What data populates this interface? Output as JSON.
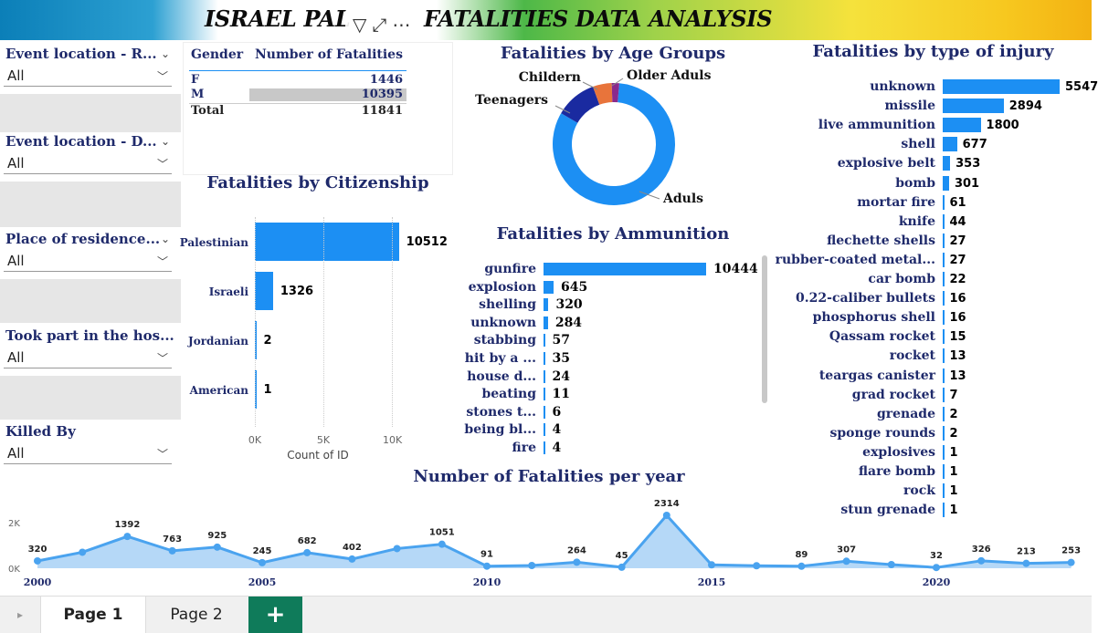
{
  "banner": {
    "title": "ISRAEL PAL          FATALITIES DATA ANALYSIS",
    "filter_icon": "filter-icon",
    "focus_icon": "focus-mode-icon",
    "more_icon": "more-options-icon"
  },
  "slicers": [
    {
      "title": "Event location - R...",
      "value": "All"
    },
    {
      "title": "Event location - D...",
      "value": "All"
    },
    {
      "title": "Place of residence...",
      "value": "All"
    },
    {
      "title": "Took part in the hos...",
      "value": "All"
    },
    {
      "title": "Killed By",
      "value": "All"
    }
  ],
  "gender_table": {
    "headers": [
      "Gender",
      "Number of Fatalities"
    ],
    "rows": [
      {
        "gender": "F",
        "count": "1446"
      },
      {
        "gender": "M",
        "count": "10395"
      }
    ],
    "total_label": "Total",
    "total_value": "11841"
  },
  "citizenship": {
    "title": "Fatalities by Citizenship",
    "xlabel": "Count of ID",
    "ticks": [
      "0K",
      "5K",
      "10K"
    ],
    "items": [
      {
        "label": "Palestinian",
        "value": 10512,
        "text": "10512"
      },
      {
        "label": "Israeli",
        "value": 1326,
        "text": "1326"
      },
      {
        "label": "Jordanian",
        "value": 2,
        "text": "2"
      },
      {
        "label": "American",
        "value": 1,
        "text": "1"
      }
    ]
  },
  "age": {
    "title": "Fatalities by Age Groups",
    "slices": [
      {
        "label": "Aduls",
        "value": 0.82,
        "color": "#1c8ff3"
      },
      {
        "label": "Teenagers",
        "value": 0.11,
        "color": "#1a2aa0"
      },
      {
        "label": "Childern",
        "value": 0.05,
        "color": "#e8743b"
      },
      {
        "label": "Older Aduls",
        "value": 0.02,
        "color": "#8a2a8c"
      }
    ]
  },
  "ammunition": {
    "title": "Fatalities by Ammunition",
    "items": [
      {
        "label": "gunfire",
        "value": 10444,
        "text": "10444"
      },
      {
        "label": "explosion",
        "value": 645,
        "text": "645"
      },
      {
        "label": "shelling",
        "value": 320,
        "text": "320"
      },
      {
        "label": "unknown",
        "value": 284,
        "text": "284"
      },
      {
        "label": "stabbing",
        "value": 57,
        "text": "57"
      },
      {
        "label": "hit by a ...",
        "value": 35,
        "text": "35"
      },
      {
        "label": "house d...",
        "value": 24,
        "text": "24"
      },
      {
        "label": "beating",
        "value": 11,
        "text": "11"
      },
      {
        "label": "stones t...",
        "value": 6,
        "text": "6"
      },
      {
        "label": "being bl...",
        "value": 4,
        "text": "4"
      },
      {
        "label": "fire",
        "value": 4,
        "text": "4"
      }
    ]
  },
  "injury": {
    "title": "Fatalities by type of injury",
    "items": [
      {
        "label": "unknown",
        "value": 5547,
        "text": "5547"
      },
      {
        "label": "missile",
        "value": 2894,
        "text": "2894"
      },
      {
        "label": "live ammunition",
        "value": 1800,
        "text": "1800"
      },
      {
        "label": "shell",
        "value": 677,
        "text": "677"
      },
      {
        "label": "explosive belt",
        "value": 353,
        "text": "353"
      },
      {
        "label": "bomb",
        "value": 301,
        "text": "301"
      },
      {
        "label": "mortar fire",
        "value": 61,
        "text": "61"
      },
      {
        "label": "knife",
        "value": 44,
        "text": "44"
      },
      {
        "label": "flechette shells",
        "value": 27,
        "text": "27"
      },
      {
        "label": "rubber-coated metal...",
        "value": 27,
        "text": "27"
      },
      {
        "label": "car bomb",
        "value": 22,
        "text": "22"
      },
      {
        "label": "0.22-caliber bullets",
        "value": 16,
        "text": "16"
      },
      {
        "label": "phosphorus shell",
        "value": 16,
        "text": "16"
      },
      {
        "label": "Qassam rocket",
        "value": 15,
        "text": "15"
      },
      {
        "label": "rocket",
        "value": 13,
        "text": "13"
      },
      {
        "label": "teargas canister",
        "value": 13,
        "text": "13"
      },
      {
        "label": "grad rocket",
        "value": 7,
        "text": "7"
      },
      {
        "label": "grenade",
        "value": 2,
        "text": "2"
      },
      {
        "label": "sponge rounds",
        "value": 2,
        "text": "2"
      },
      {
        "label": "explosives",
        "value": 1,
        "text": "1"
      },
      {
        "label": "flare bomb",
        "value": 1,
        "text": "1"
      },
      {
        "label": "rock",
        "value": 1,
        "text": "1"
      },
      {
        "label": "stun grenade",
        "value": 1,
        "text": "1"
      }
    ]
  },
  "yearly": {
    "title": "Number of Fatalities per year",
    "yticks": [
      "0K",
      "2K"
    ],
    "xticks": [
      "2000",
      "2005",
      "2010",
      "2015",
      "2020"
    ],
    "years": [
      2000,
      2001,
      2002,
      2003,
      2004,
      2005,
      2006,
      2007,
      2008,
      2009,
      2010,
      2011,
      2012,
      2013,
      2014,
      2015,
      2016,
      2017,
      2018,
      2019,
      2020,
      2021,
      2022,
      2023
    ],
    "values": [
      320,
      700,
      1392,
      763,
      925,
      245,
      682,
      402,
      860,
      1051,
      91,
      120,
      264,
      45,
      2314,
      150,
      110,
      89,
      307,
      160,
      32,
      326,
      213,
      253
    ],
    "labels": [
      "320",
      "",
      "1392",
      "763",
      "925",
      "245",
      "682",
      "402",
      "",
      "1051",
      "91",
      "",
      "264",
      "45",
      "2314",
      "",
      "",
      "89",
      "307",
      "",
      "32",
      "326",
      "213",
      "253"
    ]
  },
  "chart_data": [
    {
      "type": "bar",
      "title": "Fatalities by Citizenship",
      "xlabel": "Count of ID",
      "categories": [
        "Palestinian",
        "Israeli",
        "Jordanian",
        "American"
      ],
      "values": [
        10512,
        1326,
        2,
        1
      ]
    },
    {
      "type": "pie",
      "title": "Fatalities by Age Groups",
      "categories": [
        "Aduls",
        "Teenagers",
        "Childern",
        "Older Aduls"
      ],
      "values": [
        0.82,
        0.11,
        0.05,
        0.02
      ]
    },
    {
      "type": "bar",
      "title": "Fatalities by Ammunition",
      "categories": [
        "gunfire",
        "explosion",
        "shelling",
        "unknown",
        "stabbing",
        "hit by a ...",
        "house d...",
        "beating",
        "stones t...",
        "being bl...",
        "fire"
      ],
      "values": [
        10444,
        645,
        320,
        284,
        57,
        35,
        24,
        11,
        6,
        4,
        4
      ]
    },
    {
      "type": "bar",
      "title": "Fatalities by type of injury",
      "categories": [
        "unknown",
        "missile",
        "live ammunition",
        "shell",
        "explosive belt",
        "bomb",
        "mortar fire",
        "knife",
        "flechette shells",
        "rubber-coated metal...",
        "car bomb",
        "0.22-caliber bullets",
        "phosphorus shell",
        "Qassam rocket",
        "rocket",
        "teargas canister",
        "grad rocket",
        "grenade",
        "sponge rounds",
        "explosives",
        "flare bomb",
        "rock",
        "stun grenade"
      ],
      "values": [
        5547,
        2894,
        1800,
        677,
        353,
        301,
        61,
        44,
        27,
        27,
        22,
        16,
        16,
        15,
        13,
        13,
        7,
        2,
        2,
        1,
        1,
        1,
        1
      ]
    },
    {
      "type": "area",
      "title": "Number of Fatalities per year",
      "x": [
        2000,
        2001,
        2002,
        2003,
        2004,
        2005,
        2006,
        2007,
        2008,
        2009,
        2010,
        2011,
        2012,
        2013,
        2014,
        2015,
        2016,
        2017,
        2018,
        2019,
        2020,
        2021,
        2022,
        2023
      ],
      "values": [
        320,
        700,
        1392,
        763,
        925,
        245,
        682,
        402,
        860,
        1051,
        91,
        120,
        264,
        45,
        2314,
        150,
        110,
        89,
        307,
        160,
        32,
        326,
        213,
        253
      ],
      "ylim": [
        0,
        2500
      ]
    }
  ],
  "tabs": [
    {
      "label": "Page 1"
    },
    {
      "label": "Page 2"
    }
  ],
  "add_tab_label": "+"
}
